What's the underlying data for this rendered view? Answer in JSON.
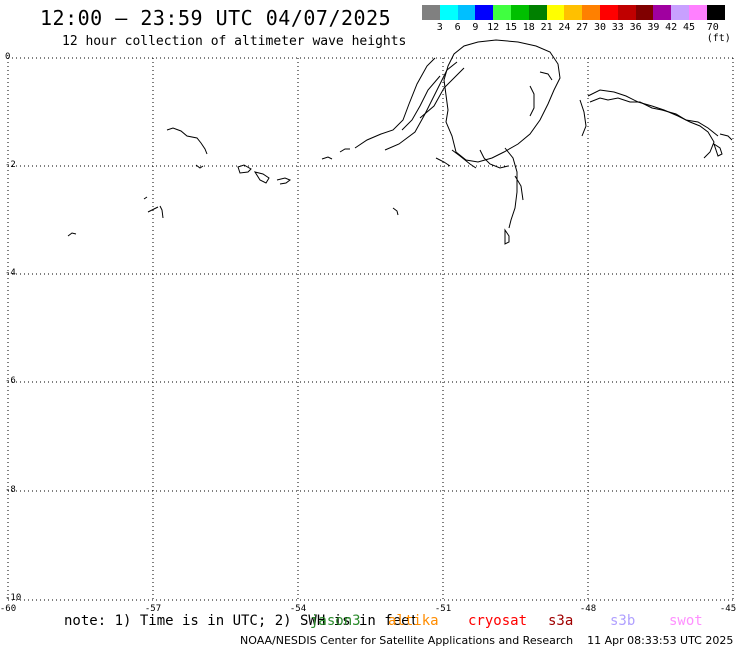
{
  "header": {
    "title": "12:00 – 23:59 UTC 04/07/2025",
    "subtitle": "12 hour collection of altimeter wave heights"
  },
  "color_scale": {
    "labels": [
      "3",
      "6",
      "9",
      "12",
      "15",
      "18",
      "21",
      "24",
      "27",
      "30",
      "33",
      "36",
      "39",
      "42",
      "45",
      "70 (ft)"
    ],
    "colors": [
      "#808080",
      "#00ffff",
      "#00bfff",
      "#0000ff",
      "#40ff40",
      "#00c000",
      "#008000",
      "#ffff00",
      "#ffc000",
      "#ff8000",
      "#ff0000",
      "#c00000",
      "#800000",
      "#a000a0",
      "#c8a0ff",
      "#ff80ff",
      "#000000"
    ]
  },
  "axes": {
    "y_labels": [
      "0",
      "-2",
      "-4",
      "-6",
      "-8",
      "-10"
    ],
    "x_labels": [
      "-60",
      "-57",
      "-54",
      "-51",
      "-48",
      "-45"
    ]
  },
  "footer": {
    "note": "note: 1) Time is in UTC; 2) SWH is in feet",
    "satellites": [
      {
        "name": "jason3",
        "color": "#2a8a2a"
      },
      {
        "name": "altika",
        "color": "#ff8c00"
      },
      {
        "name": "cryosat",
        "color": "#ff0000"
      },
      {
        "name": "s3a",
        "color": "#a00000"
      },
      {
        "name": "s3b",
        "color": "#b0a0ff"
      },
      {
        "name": "swot",
        "color": "#ff90ff"
      }
    ],
    "credit": "NOAA/NESDIS Center for Satellite Applications and Research",
    "timestamp": "11 Apr 08:33:53 UTC 2025"
  }
}
